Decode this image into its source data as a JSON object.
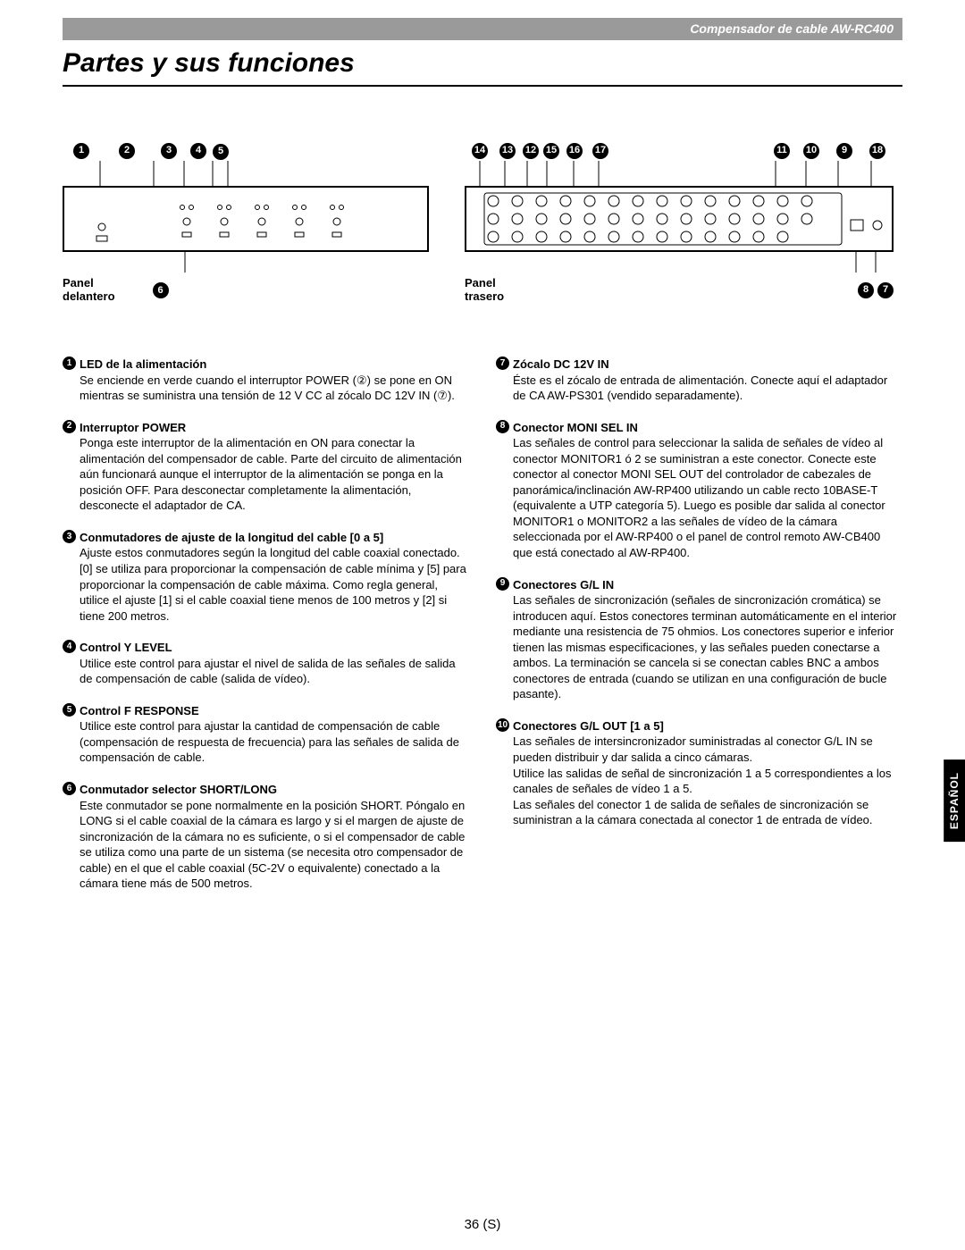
{
  "header": "Compensador de cable  AW-RC400",
  "title": "Partes y sus funciones",
  "panel_front": "Panel\ndelantero",
  "panel_rear": "Panel\ntrasero",
  "side_tab": "ESPAÑOL",
  "page_num": "36 (S)",
  "front_callouts": [
    "1",
    "2",
    "3",
    "4",
    "5"
  ],
  "front_bottom_callout": "6",
  "rear_callouts_top_left": [
    "14",
    "13",
    "12",
    "15",
    "16",
    "17"
  ],
  "rear_callouts_top_right": [
    "11",
    "10",
    "9",
    "18"
  ],
  "rear_bottom_callouts": [
    "8",
    "7"
  ],
  "left": [
    {
      "n": "1",
      "h": "LED de la alimentación",
      "b": "Se enciende en verde cuando el interruptor POWER (②) se pone en ON mientras se suministra una tensión de 12 V CC al zócalo DC 12V IN (⑦)."
    },
    {
      "n": "2",
      "h": "Interruptor POWER",
      "b": "Ponga este interruptor de la alimentación en ON para conectar la alimentación del compensador de cable. Parte del circuito de alimentación aún funcionará aunque el interruptor de la alimentación se ponga en la posición OFF. Para desconectar completamente la alimentación, desconecte el adaptador de CA."
    },
    {
      "n": "3",
      "h": "Conmutadores de ajuste de la longitud del cable [0 a 5]",
      "b": "Ajuste estos conmutadores según la longitud del cable coaxial conectado. [0] se utiliza para proporcionar la compensación de cable mínima y [5] para proporcionar la compensación de cable máxima. Como regla general, utilice el ajuste [1] si el cable coaxial tiene menos de 100 metros y [2] si tiene 200 metros."
    },
    {
      "n": "4",
      "h": "Control Y LEVEL",
      "b": "Utilice este control para ajustar el nivel de salida de las señales de salida de compensación de cable (salida de vídeo)."
    },
    {
      "n": "5",
      "h": "Control F RESPONSE",
      "b": "Utilice este control para ajustar la cantidad de compensación de cable (compensación de respuesta de frecuencia) para las señales de salida de compensación de cable."
    },
    {
      "n": "6",
      "h": "Conmutador selector SHORT/LONG",
      "b": "Este conmutador se pone normalmente en la posición SHORT. Póngalo en LONG si el cable coaxial de la cámara es largo y si el margen de ajuste de sincronización de la cámara no es suficiente, o si el compensador de cable se utiliza como una parte de un sistema (se necesita otro compensador de cable) en el que el cable coaxial (5C-2V o equivalente) conectado a la cámara tiene más de 500 metros."
    }
  ],
  "right": [
    {
      "n": "7",
      "h": "Zócalo DC 12V IN",
      "b": "Éste es el zócalo de entrada de alimentación. Conecte aquí el adaptador de CA AW-PS301 (vendido separadamente)."
    },
    {
      "n": "8",
      "h": "Conector MONI SEL IN",
      "b": "Las señales de control para seleccionar la salida de señales de vídeo al conector MONITOR1 ó 2 se suministran a este conector. Conecte este conector al conector MONI SEL OUT del controlador de cabezales de panorámica/inclinación AW-RP400 utilizando un cable recto 10BASE-T (equivalente a UTP categoría 5). Luego es posible dar salida al conector MONITOR1 o MONITOR2 a las señales de vídeo de la cámara seleccionada por el AW-RP400 o el panel de control remoto AW-CB400 que está conectado al AW-RP400."
    },
    {
      "n": "9",
      "h": "Conectores G/L IN",
      "b": "Las señales de sincronización (señales de sincronización cromática) se introducen aquí. Estos conectores terminan automáticamente en el interior mediante una resistencia de 75 ohmios. Los conectores superior e inferior tienen las mismas especificaciones, y las señales pueden conectarse a ambos. La terminación se cancela si se conectan cables BNC a ambos conectores de entrada (cuando se utilizan en una configuración de bucle pasante)."
    },
    {
      "n": "10",
      "h": "Conectores G/L OUT [1 a 5]",
      "b": "Las señales de intersincronizador suministradas al conector G/L IN se pueden distribuir y dar salida a cinco cámaras.\nUtilice las salidas de señal de sincronización 1 a 5 correspondientes a los canales de señales de vídeo 1 a 5.\nLas señales del conector 1 de salida de señales de sincronización se suministran a la cámara conectada al conector 1 de entrada de vídeo."
    }
  ]
}
